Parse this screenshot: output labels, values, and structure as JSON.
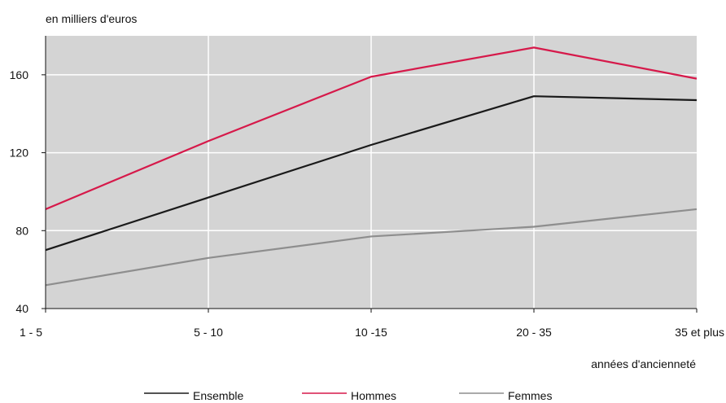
{
  "chart_data": {
    "type": "line",
    "unit_label": "en milliers d'euros",
    "xlabel": "années d'ancienneté",
    "ylabel": "",
    "categories": [
      "1 - 5",
      "5 - 10",
      "10 -15",
      "20 - 35",
      "35 et plus"
    ],
    "ylim": [
      40,
      180
    ],
    "yticks": [
      40,
      80,
      120,
      160
    ],
    "grid": true,
    "legend_position": "bottom",
    "colors": {
      "plot_bg": "#d4d4d4",
      "grid": "#ffffff",
      "axis": "#111111"
    },
    "series": [
      {
        "name": "Ensemble",
        "color": "#1a1a1a",
        "values": [
          70,
          97,
          124,
          149,
          147
        ]
      },
      {
        "name": "Hommes",
        "color": "#d6194a",
        "values": [
          91,
          126,
          159,
          174,
          158
        ]
      },
      {
        "name": "Femmes",
        "color": "#8e8e8e",
        "values": [
          52,
          66,
          77,
          82,
          91
        ]
      }
    ]
  }
}
